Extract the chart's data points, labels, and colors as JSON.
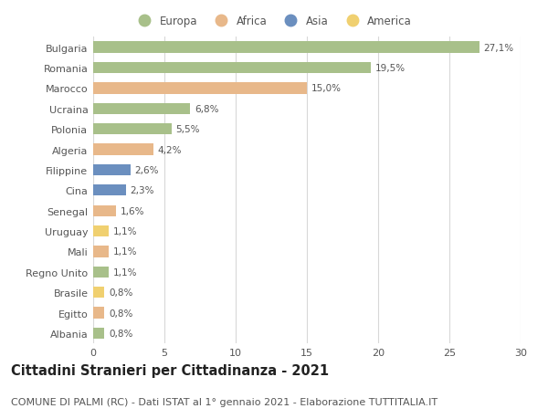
{
  "countries": [
    "Bulgaria",
    "Romania",
    "Marocco",
    "Ucraina",
    "Polonia",
    "Algeria",
    "Filippine",
    "Cina",
    "Senegal",
    "Uruguay",
    "Mali",
    "Regno Unito",
    "Brasile",
    "Egitto",
    "Albania"
  ],
  "values": [
    27.1,
    19.5,
    15.0,
    6.8,
    5.5,
    4.2,
    2.6,
    2.3,
    1.6,
    1.1,
    1.1,
    1.1,
    0.8,
    0.8,
    0.8
  ],
  "labels": [
    "27,1%",
    "19,5%",
    "15,0%",
    "6,8%",
    "5,5%",
    "4,2%",
    "2,6%",
    "2,3%",
    "1,6%",
    "1,1%",
    "1,1%",
    "1,1%",
    "0,8%",
    "0,8%",
    "0,8%"
  ],
  "continents": [
    "Europa",
    "Europa",
    "Africa",
    "Europa",
    "Europa",
    "Africa",
    "Asia",
    "Asia",
    "Africa",
    "America",
    "Africa",
    "Europa",
    "America",
    "Africa",
    "Europa"
  ],
  "colors": {
    "Europa": "#a8c08a",
    "Africa": "#e8b88a",
    "Asia": "#6b8fbf",
    "America": "#f0d070"
  },
  "xlim": [
    0,
    30
  ],
  "xticks": [
    0,
    5,
    10,
    15,
    20,
    25,
    30
  ],
  "background_color": "#ffffff",
  "grid_color": "#d8d8d8",
  "title": "Cittadini Stranieri per Cittadinanza - 2021",
  "subtitle": "COMUNE DI PALMI (RC) - Dati ISTAT al 1° gennaio 2021 - Elaborazione TUTTITALIA.IT",
  "title_fontsize": 10.5,
  "subtitle_fontsize": 8.0,
  "bar_height": 0.55,
  "label_fontsize": 7.5,
  "ytick_fontsize": 8.0,
  "xtick_fontsize": 8.0,
  "legend_fontsize": 8.5
}
